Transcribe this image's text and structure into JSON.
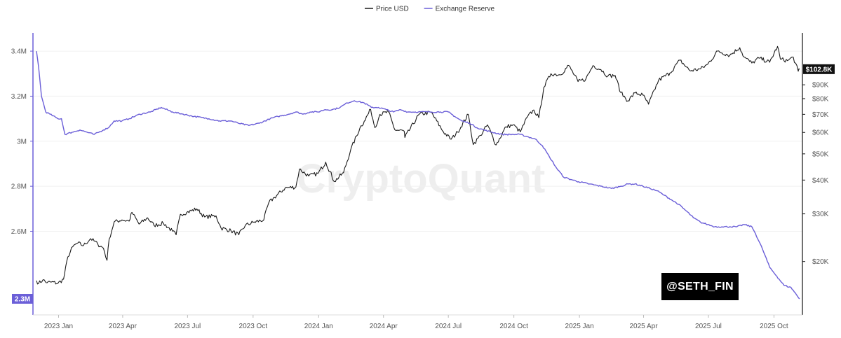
{
  "chart_data": {
    "type": "line",
    "watermark": "CryptoQuant",
    "author_tag": "@SETH_FIN",
    "legend": [
      {
        "name": "Price USD",
        "color": "#1a1a1a"
      },
      {
        "name": "Exchange Reserve",
        "color": "#6b5fd8"
      }
    ],
    "x_tick_labels": [
      "2023 Jan",
      "2023 Apr",
      "2023 Jul",
      "2023 Oct",
      "2024 Jan",
      "2024 Apr",
      "2024 Jul",
      "2024 Oct",
      "2025 Jan",
      "2025 Apr",
      "2025 Jul",
      "2025 Oct"
    ],
    "y_left": {
      "label": "",
      "scale": "linear",
      "range": [
        2.3,
        3.45
      ],
      "unit": "M",
      "ticks": [
        {
          "value": 3.4,
          "label": "3.4M"
        },
        {
          "value": 3.2,
          "label": "3.2M"
        },
        {
          "value": 3.0,
          "label": "3M"
        },
        {
          "value": 2.8,
          "label": "2.8M"
        },
        {
          "value": 2.6,
          "label": "2.6M"
        }
      ],
      "current_badge": {
        "value": 2.3,
        "label": "2.3M",
        "color": "#6b5fd8"
      }
    },
    "y_right": {
      "label": "",
      "scale": "log",
      "range": [
        13000,
        140000
      ],
      "ticks": [
        {
          "value": 90000,
          "label": "$90K"
        },
        {
          "value": 80000,
          "label": "$80K"
        },
        {
          "value": 70000,
          "label": "$70K"
        },
        {
          "value": 60000,
          "label": "$60K"
        },
        {
          "value": 50000,
          "label": "$50K"
        },
        {
          "value": 40000,
          "label": "$40K"
        },
        {
          "value": 30000,
          "label": "$30K"
        },
        {
          "value": 20000,
          "label": "$20K"
        }
      ],
      "current_badge": {
        "value": 102800,
        "label": "$102.8K",
        "color": "#111111"
      }
    },
    "grid": {
      "horizontal": true,
      "vertical": false
    },
    "x_range": [
      "2022-12-01",
      "2025-11-06"
    ],
    "series": [
      {
        "name": "Price USD",
        "axis": "right",
        "color": "#1a1a1a",
        "points": [
          [
            "2022-12-01",
            17000
          ],
          [
            "2022-12-04",
            16600
          ],
          [
            "2022-12-10",
            17100
          ],
          [
            "2022-12-16",
            16700
          ],
          [
            "2022-12-22",
            16800
          ],
          [
            "2022-12-31",
            16600
          ],
          [
            "2023-01-08",
            17200
          ],
          [
            "2023-01-14",
            20800
          ],
          [
            "2023-01-21",
            22700
          ],
          [
            "2023-01-28",
            23400
          ],
          [
            "2023-02-05",
            22900
          ],
          [
            "2023-02-15",
            24300
          ],
          [
            "2023-02-25",
            23200
          ],
          [
            "2023-03-05",
            22400
          ],
          [
            "2023-03-10",
            20200
          ],
          [
            "2023-03-13",
            24200
          ],
          [
            "2023-03-20",
            28000
          ],
          [
            "2023-03-31",
            28500
          ],
          [
            "2023-04-10",
            28200
          ],
          [
            "2023-04-14",
            30400
          ],
          [
            "2023-04-24",
            27500
          ],
          [
            "2023-05-06",
            29000
          ],
          [
            "2023-05-15",
            27200
          ],
          [
            "2023-05-28",
            27700
          ],
          [
            "2023-06-10",
            25900
          ],
          [
            "2023-06-15",
            25100
          ],
          [
            "2023-06-21",
            29900
          ],
          [
            "2023-06-30",
            30400
          ],
          [
            "2023-07-14",
            31300
          ],
          [
            "2023-07-25",
            29200
          ],
          [
            "2023-08-10",
            29500
          ],
          [
            "2023-08-17",
            26600
          ],
          [
            "2023-08-31",
            26000
          ],
          [
            "2023-09-11",
            25100
          ],
          [
            "2023-09-20",
            27200
          ],
          [
            "2023-10-01",
            27900
          ],
          [
            "2023-10-16",
            28500
          ],
          [
            "2023-10-23",
            33000
          ],
          [
            "2023-10-31",
            34500
          ],
          [
            "2023-11-15",
            37400
          ],
          [
            "2023-11-30",
            37700
          ],
          [
            "2023-12-05",
            43900
          ],
          [
            "2023-12-18",
            41400
          ],
          [
            "2023-12-31",
            42300
          ],
          [
            "2024-01-11",
            46600
          ],
          [
            "2024-01-23",
            39500
          ],
          [
            "2024-02-05",
            42600
          ],
          [
            "2024-02-15",
            51800
          ],
          [
            "2024-02-28",
            62400
          ],
          [
            "2024-03-05",
            66000
          ],
          [
            "2024-03-14",
            73000
          ],
          [
            "2024-03-20",
            62500
          ],
          [
            "2024-03-27",
            70000
          ],
          [
            "2024-04-08",
            71500
          ],
          [
            "2024-04-17",
            61300
          ],
          [
            "2024-04-30",
            60700
          ],
          [
            "2024-05-01",
            57500
          ],
          [
            "2024-05-21",
            70000
          ],
          [
            "2024-06-07",
            71200
          ],
          [
            "2024-06-24",
            60300
          ],
          [
            "2024-07-05",
            56600
          ],
          [
            "2024-07-14",
            60200
          ],
          [
            "2024-07-29",
            70000
          ],
          [
            "2024-08-05",
            54100
          ],
          [
            "2024-08-15",
            58500
          ],
          [
            "2024-08-25",
            64000
          ],
          [
            "2024-09-06",
            53900
          ],
          [
            "2024-09-20",
            63000
          ],
          [
            "2024-09-30",
            64000
          ],
          [
            "2024-10-10",
            60300
          ],
          [
            "2024-10-20",
            68500
          ],
          [
            "2024-10-29",
            72600
          ],
          [
            "2024-11-05",
            68000
          ],
          [
            "2024-11-12",
            88000
          ],
          [
            "2024-11-22",
            98900
          ],
          [
            "2024-12-05",
            98000
          ],
          [
            "2024-12-17",
            106100
          ],
          [
            "2024-12-30",
            92500
          ],
          [
            "2025-01-10",
            94500
          ],
          [
            "2025-01-20",
            106000
          ],
          [
            "2025-01-31",
            102500
          ],
          [
            "2025-02-10",
            97000
          ],
          [
            "2025-02-20",
            97500
          ],
          [
            "2025-02-28",
            84300
          ],
          [
            "2025-03-10",
            78500
          ],
          [
            "2025-03-20",
            84000
          ],
          [
            "2025-03-31",
            82500
          ],
          [
            "2025-04-08",
            76300
          ],
          [
            "2025-04-22",
            93500
          ],
          [
            "2025-05-08",
            99500
          ],
          [
            "2025-05-22",
            111000
          ],
          [
            "2025-06-05",
            101500
          ],
          [
            "2025-06-20",
            103000
          ],
          [
            "2025-06-30",
            107200
          ],
          [
            "2025-07-14",
            119900
          ],
          [
            "2025-07-31",
            115700
          ],
          [
            "2025-08-14",
            123500
          ],
          [
            "2025-08-20",
            114000
          ],
          [
            "2025-08-31",
            108300
          ],
          [
            "2025-09-10",
            113000
          ],
          [
            "2025-09-25",
            109000
          ],
          [
            "2025-10-06",
            124800
          ],
          [
            "2025-10-10",
            112000
          ],
          [
            "2025-10-20",
            110500
          ],
          [
            "2025-10-28",
            114000
          ],
          [
            "2025-11-04",
            101000
          ],
          [
            "2025-11-06",
            102800
          ]
        ]
      },
      {
        "name": "Exchange Reserve",
        "axis": "left",
        "color": "#6b5fd8",
        "points": [
          [
            "2022-12-01",
            3.4
          ],
          [
            "2022-12-04",
            3.33
          ],
          [
            "2022-12-08",
            3.2
          ],
          [
            "2022-12-14",
            3.13
          ],
          [
            "2022-12-20",
            3.12
          ],
          [
            "2022-12-31",
            3.1
          ],
          [
            "2023-01-05",
            3.1
          ],
          [
            "2023-01-10",
            3.03
          ],
          [
            "2023-01-20",
            3.04
          ],
          [
            "2023-01-31",
            3.05
          ],
          [
            "2023-02-10",
            3.04
          ],
          [
            "2023-02-20",
            3.03
          ],
          [
            "2023-03-05",
            3.05
          ],
          [
            "2023-03-12",
            3.06
          ],
          [
            "2023-03-20",
            3.09
          ],
          [
            "2023-03-31",
            3.09
          ],
          [
            "2023-04-10",
            3.1
          ],
          [
            "2023-04-25",
            3.12
          ],
          [
            "2023-05-10",
            3.13
          ],
          [
            "2023-05-25",
            3.15
          ],
          [
            "2023-06-10",
            3.13
          ],
          [
            "2023-06-25",
            3.12
          ],
          [
            "2023-07-10",
            3.11
          ],
          [
            "2023-07-31",
            3.1
          ],
          [
            "2023-08-15",
            3.09
          ],
          [
            "2023-08-31",
            3.09
          ],
          [
            "2023-09-10",
            3.08
          ],
          [
            "2023-09-25",
            3.07
          ],
          [
            "2023-10-10",
            3.08
          ],
          [
            "2023-10-25",
            3.1
          ],
          [
            "2023-11-05",
            3.11
          ],
          [
            "2023-11-20",
            3.12
          ],
          [
            "2023-11-30",
            3.13
          ],
          [
            "2023-12-10",
            3.12
          ],
          [
            "2023-12-20",
            3.13
          ],
          [
            "2023-12-31",
            3.13
          ],
          [
            "2024-01-10",
            3.14
          ],
          [
            "2024-01-20",
            3.14
          ],
          [
            "2024-01-31",
            3.15
          ],
          [
            "2024-02-10",
            3.17
          ],
          [
            "2024-02-20",
            3.18
          ],
          [
            "2024-03-05",
            3.17
          ],
          [
            "2024-03-15",
            3.15
          ],
          [
            "2024-03-25",
            3.15
          ],
          [
            "2024-04-05",
            3.14
          ],
          [
            "2024-04-15",
            3.13
          ],
          [
            "2024-04-25",
            3.14
          ],
          [
            "2024-05-05",
            3.13
          ],
          [
            "2024-05-20",
            3.13
          ],
          [
            "2024-06-05",
            3.13
          ],
          [
            "2024-06-20",
            3.13
          ],
          [
            "2024-07-01",
            3.13
          ],
          [
            "2024-07-10",
            3.11
          ],
          [
            "2024-07-20",
            3.09
          ],
          [
            "2024-07-31",
            3.08
          ],
          [
            "2024-08-10",
            3.06
          ],
          [
            "2024-08-20",
            3.05
          ],
          [
            "2024-08-31",
            3.04
          ],
          [
            "2024-09-15",
            3.03
          ],
          [
            "2024-09-30",
            3.03
          ],
          [
            "2024-10-10",
            3.03
          ],
          [
            "2024-10-20",
            3.02
          ],
          [
            "2024-10-31",
            3.01
          ],
          [
            "2024-11-10",
            2.98
          ],
          [
            "2024-11-20",
            2.93
          ],
          [
            "2024-11-30",
            2.88
          ],
          [
            "2024-12-10",
            2.84
          ],
          [
            "2024-12-20",
            2.83
          ],
          [
            "2024-12-31",
            2.82
          ],
          [
            "2025-01-15",
            2.81
          ],
          [
            "2025-01-31",
            2.8
          ],
          [
            "2025-02-15",
            2.79
          ],
          [
            "2025-02-28",
            2.8
          ],
          [
            "2025-03-10",
            2.81
          ],
          [
            "2025-03-20",
            2.81
          ],
          [
            "2025-03-31",
            2.8
          ],
          [
            "2025-04-10",
            2.79
          ],
          [
            "2025-04-20",
            2.78
          ],
          [
            "2025-04-30",
            2.76
          ],
          [
            "2025-05-10",
            2.74
          ],
          [
            "2025-05-20",
            2.72
          ],
          [
            "2025-05-31",
            2.69
          ],
          [
            "2025-06-10",
            2.66
          ],
          [
            "2025-06-20",
            2.64
          ],
          [
            "2025-06-30",
            2.63
          ],
          [
            "2025-07-10",
            2.62
          ],
          [
            "2025-07-20",
            2.62
          ],
          [
            "2025-07-31",
            2.62
          ],
          [
            "2025-08-10",
            2.62
          ],
          [
            "2025-08-20",
            2.63
          ],
          [
            "2025-08-31",
            2.62
          ],
          [
            "2025-09-05",
            2.59
          ],
          [
            "2025-09-15",
            2.52
          ],
          [
            "2025-09-25",
            2.44
          ],
          [
            "2025-10-05",
            2.4
          ],
          [
            "2025-10-15",
            2.36
          ],
          [
            "2025-10-25",
            2.35
          ],
          [
            "2025-11-06",
            2.3
          ]
        ]
      }
    ]
  }
}
